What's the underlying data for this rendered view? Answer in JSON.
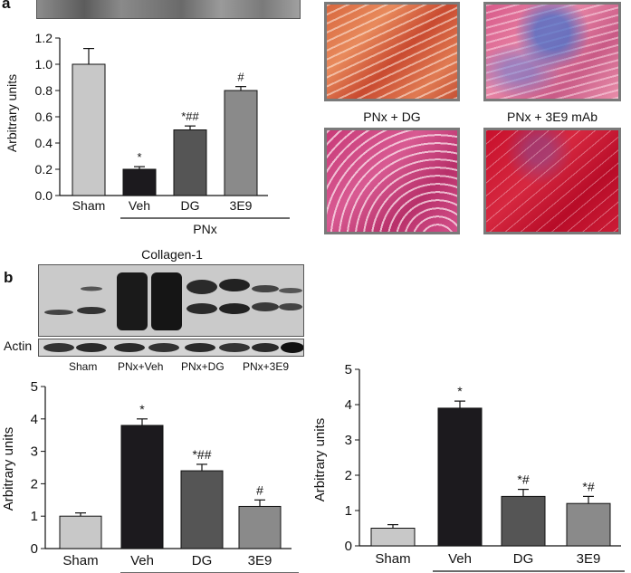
{
  "figure": {
    "panel_a_letter": "a",
    "panel_b_letter": "b",
    "histology_captions": [
      "PNx + DG",
      "PNx + 3E9 mAb"
    ],
    "collagen_blot_title": "Collagen-1",
    "actin_label": "Actin",
    "blot_lane_labels": [
      "Sham",
      "PNx+Veh",
      "PNx+DG",
      "PNx+3E9"
    ]
  },
  "colors": {
    "sham": "#c8c8c8",
    "veh": "#1c1a1e",
    "dg": "#555555",
    "e39": "#8a8a8a"
  },
  "chart_data": [
    {
      "id": "chart-a",
      "type": "bar",
      "ylabel": "Arbitrary units",
      "ylim": [
        0,
        1.2
      ],
      "yticks": [
        "0.0",
        "0.2",
        "0.4",
        "0.6",
        "0.8",
        "1.0",
        "1.2"
      ],
      "categories": [
        "Sham",
        "Veh",
        "DG",
        "3E9"
      ],
      "values": [
        1.0,
        0.2,
        0.5,
        0.8
      ],
      "errors": [
        0.12,
        0.02,
        0.03,
        0.03
      ],
      "annotations": [
        "",
        "*",
        "*##",
        "#"
      ],
      "group_label": "PNx"
    },
    {
      "id": "chart-b1",
      "type": "bar",
      "ylabel": "Arbitrary units",
      "ylim": [
        0,
        5
      ],
      "yticks": [
        "0",
        "1",
        "2",
        "3",
        "4",
        "5"
      ],
      "categories": [
        "Sham",
        "Veh",
        "DG",
        "3E9"
      ],
      "values": [
        1.0,
        3.8,
        2.4,
        1.3
      ],
      "errors": [
        0.1,
        0.2,
        0.2,
        0.2
      ],
      "annotations": [
        "",
        "*",
        "*##",
        "#"
      ],
      "group_label": ""
    },
    {
      "id": "chart-b2",
      "type": "bar",
      "ylabel": "Arbitrary units",
      "ylim": [
        0,
        5
      ],
      "yticks": [
        "0",
        "1",
        "2",
        "3",
        "4",
        "5"
      ],
      "categories": [
        "Sham",
        "Veh",
        "DG",
        "3E9"
      ],
      "values": [
        0.5,
        3.9,
        1.4,
        1.2
      ],
      "errors": [
        0.1,
        0.2,
        0.2,
        0.2
      ],
      "annotations": [
        "",
        "*",
        "*#",
        "*#"
      ],
      "group_label": ""
    }
  ]
}
